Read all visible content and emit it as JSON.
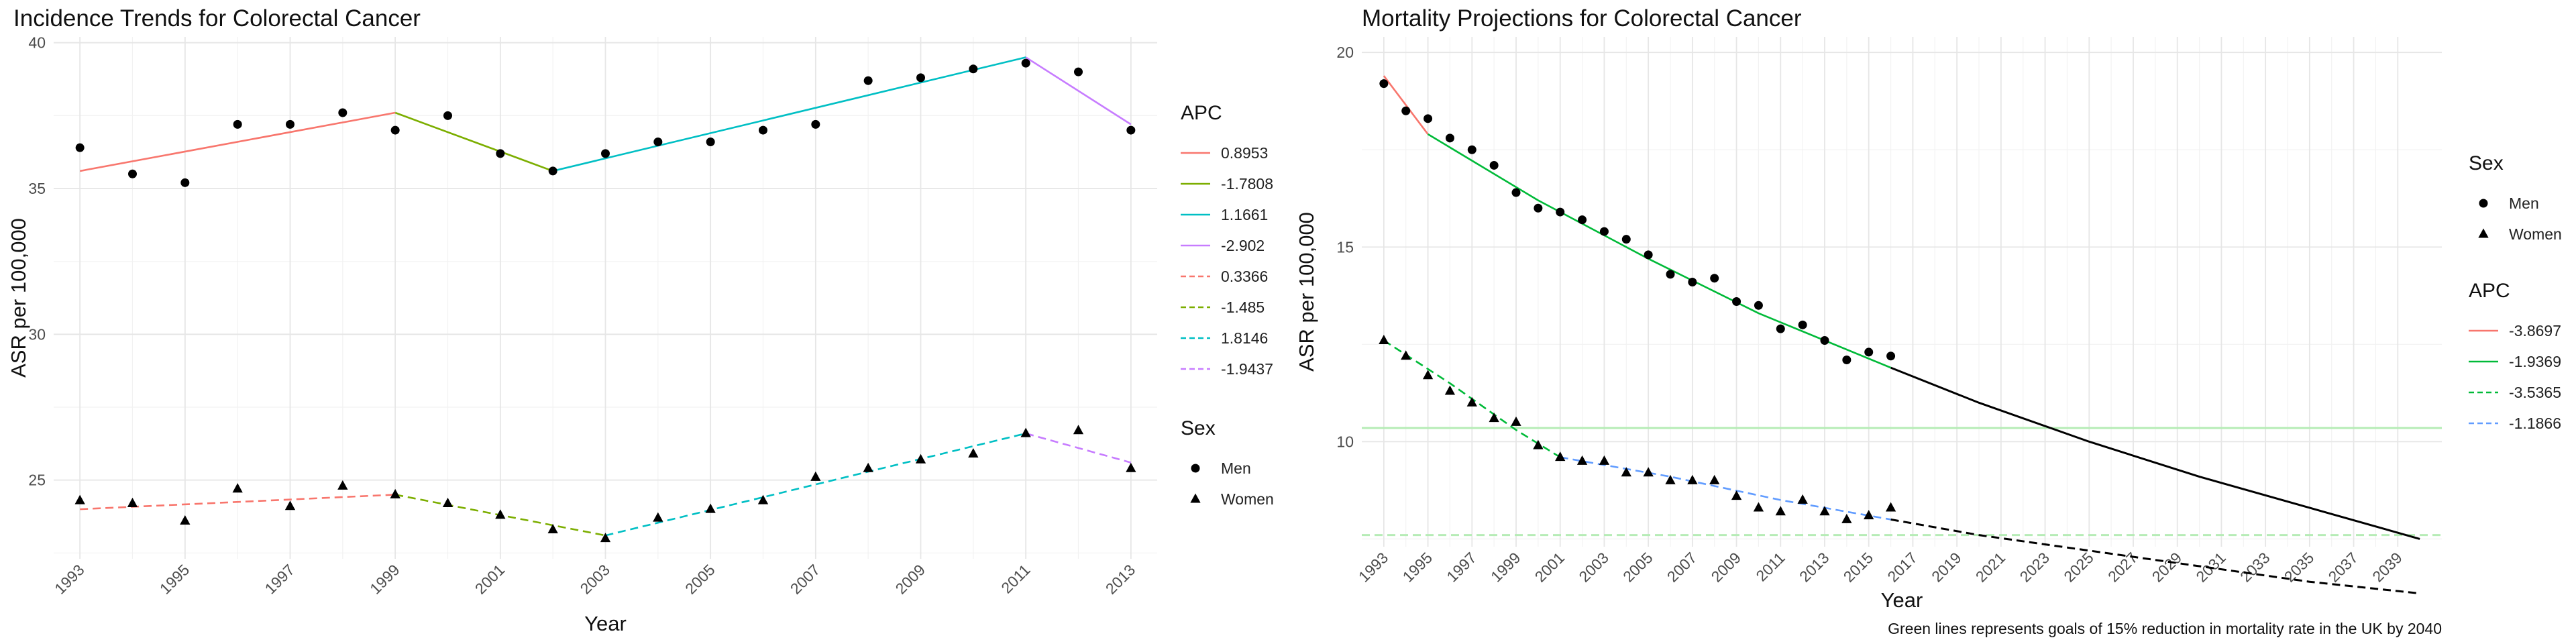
{
  "chart_data": [
    {
      "type": "line",
      "title": "Incidence Trends for Colorectal Cancer",
      "xlabel": "Year",
      "ylabel": "ASR per 100,000",
      "xlim": [
        1992.5,
        2013.5
      ],
      "ylim": [
        22.3,
        40.2
      ],
      "x_ticks": [
        1993,
        1995,
        1997,
        1999,
        2001,
        2003,
        2005,
        2007,
        2009,
        2011,
        2013
      ],
      "y_ticks": [
        25,
        30,
        35,
        40
      ],
      "grid": true,
      "legend_position": "right",
      "points": [
        {
          "name": "Men",
          "shape": "circle",
          "x": [
            1993,
            1994,
            1995,
            1996,
            1997,
            1998,
            1999,
            2000,
            2001,
            2002,
            2003,
            2004,
            2005,
            2006,
            2007,
            2008,
            2009,
            2010,
            2011,
            2012,
            2013
          ],
          "y": [
            36.4,
            35.5,
            35.2,
            37.2,
            37.2,
            37.6,
            37.0,
            37.5,
            36.2,
            35.6,
            36.2,
            36.6,
            36.6,
            37.0,
            37.2,
            38.7,
            38.8,
            39.1,
            39.3,
            39.0,
            37.0
          ]
        },
        {
          "name": "Women",
          "shape": "triangle",
          "x": [
            1993,
            1994,
            1995,
            1996,
            1997,
            1998,
            1999,
            2000,
            2001,
            2002,
            2003,
            2004,
            2005,
            2006,
            2007,
            2008,
            2009,
            2010,
            2011,
            2012,
            2013
          ],
          "y": [
            24.3,
            24.2,
            23.6,
            24.7,
            24.1,
            24.8,
            24.5,
            24.2,
            23.8,
            23.3,
            23.0,
            23.7,
            24.0,
            24.3,
            25.1,
            25.4,
            25.7,
            25.9,
            26.6,
            26.7,
            25.4
          ]
        }
      ],
      "series": [
        {
          "name": "0.8953",
          "color": "#F8766D",
          "dash": false,
          "x": [
            1993,
            1999
          ],
          "y": [
            35.6,
            37.6
          ]
        },
        {
          "name": "-1.7808",
          "color": "#7CAE00",
          "dash": false,
          "x": [
            1999,
            2002
          ],
          "y": [
            37.6,
            35.6
          ]
        },
        {
          "name": "1.1661",
          "color": "#00BFC4",
          "dash": false,
          "x": [
            2002,
            2011
          ],
          "y": [
            35.6,
            39.5
          ]
        },
        {
          "name": "-2.902",
          "color": "#C77CFF",
          "dash": false,
          "x": [
            2011,
            2013
          ],
          "y": [
            39.5,
            37.2
          ]
        },
        {
          "name": "0.3366",
          "color": "#F8766D",
          "dash": true,
          "x": [
            1993,
            1999
          ],
          "y": [
            24.0,
            24.5
          ]
        },
        {
          "name": "-1.485",
          "color": "#7CAE00",
          "dash": true,
          "x": [
            1999,
            2003
          ],
          "y": [
            24.5,
            23.1
          ]
        },
        {
          "name": "1.8146",
          "color": "#00BFC4",
          "dash": true,
          "x": [
            2003,
            2011
          ],
          "y": [
            23.1,
            26.6
          ]
        },
        {
          "name": "-1.9437",
          "color": "#C77CFF",
          "dash": true,
          "x": [
            2011,
            2013
          ],
          "y": [
            26.6,
            25.6
          ]
        }
      ],
      "legend": {
        "apc_title": "APC",
        "sex_title": "Sex"
      }
    },
    {
      "type": "line",
      "title": "Mortality Projections for Colorectal Cancer",
      "xlabel": "Year",
      "ylabel": "ASR per 100,000",
      "xlim": [
        1992,
        2041
      ],
      "ylim": [
        7.3,
        20.4
      ],
      "x_ticks": [
        1993,
        1995,
        1997,
        1999,
        2001,
        2003,
        2005,
        2007,
        2009,
        2011,
        2013,
        2015,
        2017,
        2019,
        2021,
        2023,
        2025,
        2027,
        2029,
        2031,
        2033,
        2035,
        2037,
        2039
      ],
      "y_ticks": [
        10,
        15,
        20
      ],
      "grid": true,
      "legend_position": "right",
      "caption": "Green lines represents goals of 15% reduction in mortality rate in the UK by 2040",
      "reference_lines": [
        {
          "y": 10.35,
          "color": "#b6ecb6",
          "dash": false
        },
        {
          "y": 7.6,
          "color": "#b6ecb6",
          "dash": true
        }
      ],
      "points": [
        {
          "name": "Men",
          "shape": "circle",
          "x": [
            1993,
            1994,
            1995,
            1996,
            1997,
            1998,
            1999,
            2000,
            2001,
            2002,
            2003,
            2004,
            2005,
            2006,
            2007,
            2008,
            2009,
            2010,
            2011,
            2012,
            2013,
            2014,
            2015,
            2016
          ],
          "y": [
            19.2,
            18.5,
            18.3,
            17.8,
            17.5,
            17.1,
            16.4,
            16.0,
            15.9,
            15.7,
            15.4,
            15.2,
            14.8,
            14.3,
            14.1,
            14.2,
            13.6,
            13.5,
            12.9,
            13.0,
            12.6,
            12.1,
            12.3,
            12.2
          ]
        },
        {
          "name": "Women",
          "shape": "triangle",
          "x": [
            1993,
            1994,
            1995,
            1996,
            1997,
            1998,
            1999,
            2000,
            2001,
            2002,
            2003,
            2004,
            2005,
            2006,
            2007,
            2008,
            2009,
            2010,
            2011,
            2012,
            2013,
            2014,
            2015,
            2016
          ],
          "y": [
            12.6,
            12.2,
            11.7,
            11.3,
            11.0,
            10.6,
            10.5,
            9.9,
            9.6,
            9.5,
            9.5,
            9.2,
            9.2,
            9.0,
            9.0,
            9.0,
            8.6,
            8.3,
            8.2,
            8.5,
            8.2,
            8.0,
            8.1,
            8.3
          ]
        }
      ],
      "series": [
        {
          "name": "-3.8697",
          "color": "#F8766D",
          "dash": false,
          "x": [
            1993,
            1995
          ],
          "y": [
            19.4,
            17.9
          ]
        },
        {
          "name": "-1.9369",
          "color": "#00BA38",
          "dash": false,
          "x": [
            1995,
            2000,
            2005,
            2010,
            2016
          ],
          "y": [
            17.9,
            16.2,
            14.7,
            13.3,
            11.9
          ]
        },
        {
          "name": "-3.5365",
          "color": "#00BA38",
          "dash": true,
          "x": [
            1993,
            1996,
            1999,
            2001
          ],
          "y": [
            12.6,
            11.5,
            10.3,
            9.6
          ]
        },
        {
          "name": "-1.1866",
          "color": "#619CFF",
          "dash": true,
          "x": [
            2001,
            2006,
            2011,
            2016
          ],
          "y": [
            9.6,
            9.1,
            8.5,
            8.0
          ]
        }
      ],
      "projections": [
        {
          "sex": "Men",
          "color": "#000000",
          "dash": false,
          "x": [
            2016,
            2020,
            2025,
            2030,
            2035,
            2040
          ],
          "y": [
            11.9,
            11.0,
            10.0,
            9.1,
            8.3,
            7.5
          ]
        },
        {
          "sex": "Women",
          "color": "#000000",
          "dash": true,
          "x": [
            2016,
            2020,
            2025,
            2030,
            2035,
            2040
          ],
          "y": [
            8.0,
            7.6,
            7.2,
            6.8,
            6.4,
            6.1
          ]
        }
      ],
      "legend": {
        "sex_title": "Sex",
        "apc_title": "APC"
      }
    }
  ]
}
